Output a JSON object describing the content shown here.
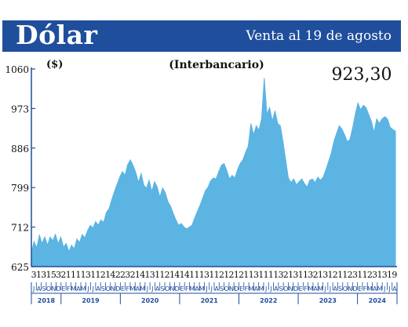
{
  "header": {
    "title": "Dólar",
    "subtitle": "Venta al 19 de agosto"
  },
  "chart_data": {
    "type": "area",
    "title": "Dólar",
    "subtitle": "(Interbancario)",
    "ylabel": "($)",
    "last_value_label": "923,30",
    "ylim": [
      625,
      1060
    ],
    "yticks": [
      625,
      712,
      799,
      886,
      973,
      1060
    ],
    "ytick_labels": [
      "625",
      "712",
      "799",
      "886",
      "973",
      "1060"
    ],
    "grid": false,
    "fill_color": "#5bb4e2",
    "header_color": "#1f4e9c",
    "axis_color": "#1f4e9c",
    "day_labels": "31315321111311214223214131121414111311212121131111321311321312112311231319",
    "month_labels": [
      "J",
      "A",
      "S",
      "O",
      "N",
      "D",
      "E",
      "F",
      "M",
      "A",
      "M",
      "J",
      "J",
      "A",
      "S",
      "O",
      "N",
      "D",
      "E",
      "F",
      "M",
      "A",
      "M",
      "J",
      "J",
      "A",
      "S",
      "O",
      "N",
      "D",
      "E",
      "F",
      "M",
      "A",
      "M",
      "J",
      "J",
      "A",
      "S",
      "O",
      "N",
      "D",
      "E",
      "F",
      "M",
      "A",
      "M",
      "J",
      "J",
      "A",
      "S",
      "O",
      "N",
      "D",
      "E",
      "F",
      "M",
      "A",
      "M",
      "J",
      "J",
      "A",
      "S",
      "O",
      "N",
      "D",
      "E",
      "F",
      "M",
      "A",
      "M",
      "J",
      "J",
      "A"
    ],
    "year_labels": [
      "2018",
      "2019",
      "2020",
      "2021",
      "2022",
      "2023",
      "2024"
    ],
    "x_start": "2018-07",
    "x_end": "2024-08-19",
    "series": [
      {
        "values": [
          [
            0,
            655
          ],
          [
            2,
            680
          ],
          [
            4,
            666
          ],
          [
            6,
            694
          ],
          [
            8,
            676
          ],
          [
            10,
            690
          ],
          [
            12,
            672
          ],
          [
            14,
            690
          ],
          [
            16,
            682
          ],
          [
            18,
            696
          ],
          [
            20,
            675
          ],
          [
            22,
            690
          ],
          [
            24,
            668
          ],
          [
            26,
            676
          ],
          [
            28,
            658
          ],
          [
            30,
            672
          ],
          [
            32,
            664
          ],
          [
            34,
            686
          ],
          [
            36,
            678
          ],
          [
            38,
            696
          ],
          [
            40,
            688
          ],
          [
            42,
            704
          ],
          [
            44,
            716
          ],
          [
            46,
            710
          ],
          [
            48,
            724
          ],
          [
            50,
            716
          ],
          [
            52,
            728
          ],
          [
            54,
            722
          ],
          [
            56,
            744
          ],
          [
            58,
            752
          ],
          [
            60,
            772
          ],
          [
            62,
            790
          ],
          [
            64,
            806
          ],
          [
            66,
            822
          ],
          [
            68,
            834
          ],
          [
            70,
            826
          ],
          [
            72,
            850
          ],
          [
            74,
            860
          ],
          [
            76,
            848
          ],
          [
            78,
            832
          ],
          [
            80,
            810
          ],
          [
            82,
            830
          ],
          [
            84,
            804
          ],
          [
            86,
            798
          ],
          [
            88,
            815
          ],
          [
            90,
            790
          ],
          [
            92,
            812
          ],
          [
            94,
            800
          ],
          [
            96,
            778
          ],
          [
            98,
            798
          ],
          [
            100,
            788
          ],
          [
            102,
            768
          ],
          [
            104,
            758
          ],
          [
            106,
            742
          ],
          [
            108,
            728
          ],
          [
            110,
            716
          ],
          [
            112,
            720
          ],
          [
            114,
            712
          ],
          [
            116,
            708
          ],
          [
            118,
            712
          ],
          [
            120,
            716
          ],
          [
            122,
            732
          ],
          [
            124,
            746
          ],
          [
            126,
            760
          ],
          [
            128,
            776
          ],
          [
            130,
            792
          ],
          [
            132,
            800
          ],
          [
            134,
            814
          ],
          [
            136,
            820
          ],
          [
            138,
            818
          ],
          [
            140,
            834
          ],
          [
            142,
            848
          ],
          [
            144,
            852
          ],
          [
            146,
            836
          ],
          [
            148,
            818
          ],
          [
            150,
            826
          ],
          [
            152,
            820
          ],
          [
            154,
            838
          ],
          [
            156,
            852
          ],
          [
            158,
            860
          ],
          [
            160,
            876
          ],
          [
            162,
            890
          ],
          [
            164,
            940
          ],
          [
            166,
            915
          ],
          [
            168,
            935
          ],
          [
            170,
            925
          ],
          [
            172,
            950
          ],
          [
            174,
            1040
          ],
          [
            176,
            960
          ],
          [
            178,
            975
          ],
          [
            180,
            945
          ],
          [
            182,
            968
          ],
          [
            184,
            940
          ],
          [
            186,
            935
          ],
          [
            188,
            900
          ],
          [
            190,
            860
          ],
          [
            192,
            820
          ],
          [
            194,
            810
          ],
          [
            196,
            818
          ],
          [
            198,
            805
          ],
          [
            200,
            812
          ],
          [
            202,
            818
          ],
          [
            204,
            808
          ],
          [
            206,
            800
          ],
          [
            208,
            815
          ],
          [
            210,
            818
          ],
          [
            212,
            810
          ],
          [
            214,
            822
          ],
          [
            216,
            815
          ],
          [
            218,
            822
          ],
          [
            220,
            838
          ],
          [
            222,
            856
          ],
          [
            224,
            874
          ],
          [
            226,
            900
          ],
          [
            228,
            918
          ],
          [
            230,
            935
          ],
          [
            232,
            928
          ],
          [
            234,
            915
          ],
          [
            236,
            900
          ],
          [
            238,
            905
          ],
          [
            240,
            930
          ],
          [
            242,
            960
          ],
          [
            244,
            985
          ],
          [
            246,
            970
          ],
          [
            248,
            980
          ],
          [
            250,
            975
          ],
          [
            252,
            960
          ],
          [
            254,
            945
          ],
          [
            256,
            920
          ],
          [
            258,
            950
          ],
          [
            260,
            940
          ],
          [
            262,
            950
          ],
          [
            264,
            955
          ],
          [
            266,
            950
          ],
          [
            268,
            932
          ],
          [
            270,
            927
          ],
          [
            272,
            923
          ]
        ]
      }
    ]
  }
}
